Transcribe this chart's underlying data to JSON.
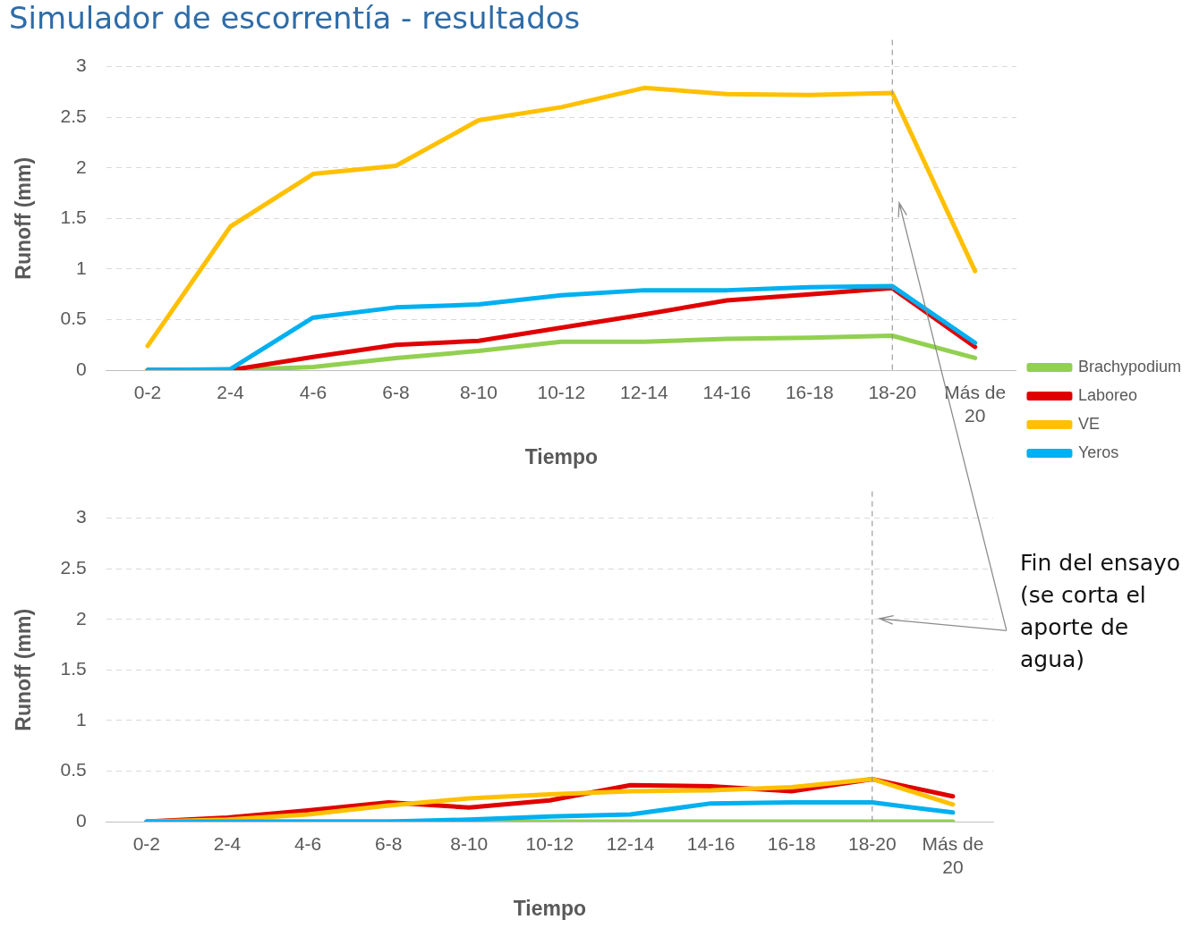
{
  "chart_data": [
    {
      "type": "line",
      "title": "Simulador de escorrentía - resultados",
      "xlabel": "Tiempo",
      "ylabel": "Runoff (mm)",
      "categories": [
        "0-2",
        "2-4",
        "4-6",
        "6-8",
        "8-10",
        "10-12",
        "12-14",
        "14-16",
        "16-18",
        "18-20",
        "Más de 20"
      ],
      "series": [
        {
          "name": "Brachypodium",
          "color": "#92d050",
          "values": [
            0,
            0,
            0.03,
            0.12,
            0.19,
            0.28,
            0.28,
            0.31,
            0.32,
            0.34,
            0.12
          ]
        },
        {
          "name": "Laboreo",
          "color": "#e00000",
          "values": [
            0,
            0,
            0.13,
            0.25,
            0.29,
            0.42,
            0.55,
            0.69,
            0.75,
            0.81,
            0.23
          ]
        },
        {
          "name": "VE",
          "color": "#ffc000",
          "values": [
            0.24,
            1.42,
            1.94,
            2.02,
            2.47,
            2.6,
            2.79,
            2.73,
            2.72,
            2.74,
            0.98
          ]
        },
        {
          "name": "Yeros",
          "color": "#00b0f0",
          "values": [
            0,
            0.01,
            0.52,
            0.62,
            0.65,
            0.74,
            0.79,
            0.79,
            0.82,
            0.83,
            0.27
          ]
        }
      ],
      "ylim": [
        0,
        3
      ],
      "yticks": [
        0,
        0.5,
        1,
        1.5,
        2,
        2.5,
        3
      ],
      "grid": "y",
      "legend": "right",
      "marker": "none",
      "ref_lines": [
        {
          "axis": "x",
          "value": "18-20",
          "line_style": "dashed"
        }
      ]
    },
    {
      "type": "line",
      "xlabel": "Tiempo",
      "ylabel": "Runoff (mm)",
      "categories": [
        "0-2",
        "2-4",
        "4-6",
        "6-8",
        "8-10",
        "10-12",
        "12-14",
        "14-16",
        "16-18",
        "18-20",
        "Más de 20"
      ],
      "series": [
        {
          "color": "#92d050",
          "values": [
            0,
            0,
            0,
            0,
            0,
            0,
            0,
            0,
            0,
            0,
            0
          ]
        },
        {
          "color": "#e00000",
          "values": [
            0,
            0.04,
            0.11,
            0.19,
            0.14,
            0.21,
            0.36,
            0.35,
            0.3,
            0.42,
            0.25
          ]
        },
        {
          "color": "#ffc000",
          "values": [
            0,
            0.02,
            0.07,
            0.16,
            0.23,
            0.27,
            0.3,
            0.31,
            0.34,
            0.42,
            0.17
          ]
        },
        {
          "color": "#00b0f0",
          "values": [
            0,
            0,
            0,
            0,
            0.02,
            0.05,
            0.07,
            0.18,
            0.19,
            0.19,
            0.09
          ]
        }
      ],
      "ylim": [
        0,
        3
      ],
      "yticks": [
        0,
        0.5,
        1,
        1.5,
        2,
        2.5,
        3
      ],
      "grid": "y",
      "legend": false,
      "marker": "none",
      "ref_lines": [
        {
          "axis": "x",
          "value": "18-20",
          "line_style": "dashed"
        }
      ],
      "annotations": [
        "Fin del ensayo (se corta el aporte de agua)"
      ]
    }
  ]
}
